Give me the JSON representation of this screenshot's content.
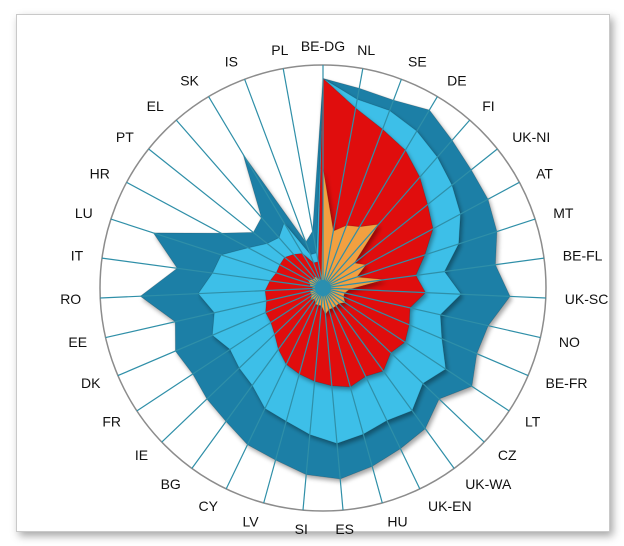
{
  "chart_data": {
    "type": "radar",
    "title": "",
    "categories": [
      "BE-DG",
      "NL",
      "SE",
      "DE",
      "FI",
      "UK-NI",
      "AT",
      "MT",
      "BE-FL",
      "UK-SC",
      "NO",
      "BE-FR",
      "LT",
      "CZ",
      "UK-WA",
      "UK-EN",
      "HU",
      "ES",
      "SI",
      "LV",
      "CY",
      "BG",
      "IE",
      "FR",
      "DK",
      "EE",
      "RO",
      "IT",
      "LU",
      "HR",
      "PT",
      "EL",
      "SK",
      "IS",
      "PL"
    ],
    "rmax": 100,
    "grid": true,
    "legend": "none",
    "series": [
      {
        "color": "#1f7fa6",
        "values": [
          94,
          91,
          90,
          93,
          88,
          85,
          84,
          82,
          78,
          84,
          76,
          75,
          80,
          72,
          78,
          80,
          83,
          86,
          84,
          80,
          78,
          74,
          72,
          70,
          72,
          68,
          82,
          66,
          80,
          52,
          40,
          42,
          70,
          22,
          26
        ]
      },
      {
        "color": "#3cbfe8",
        "values": [
          94,
          86,
          85,
          82,
          78,
          74,
          70,
          64,
          55,
          62,
          54,
          58,
          66,
          62,
          68,
          66,
          68,
          70,
          66,
          62,
          60,
          54,
          52,
          50,
          54,
          50,
          56,
          50,
          48,
          38,
          32,
          30,
          34,
          16,
          16
        ]
      },
      {
        "color": "#e00c0c",
        "values": [
          94,
          82,
          76,
          72,
          66,
          60,
          56,
          48,
          42,
          46,
          40,
          42,
          44,
          42,
          46,
          44,
          46,
          44,
          42,
          40,
          38,
          34,
          30,
          28,
          28,
          26,
          26,
          24,
          22,
          22,
          22,
          20,
          18,
          12,
          12
        ]
      },
      {
        "color": "#f2a040",
        "values": [
          54,
          26,
          30,
          32,
          38,
          18,
          22,
          16,
          28,
          12,
          10,
          10,
          12,
          10,
          10,
          10,
          10,
          12,
          8,
          8,
          8,
          6,
          8,
          6,
          6,
          6,
          4,
          6,
          6,
          8,
          6,
          6,
          6,
          4,
          4
        ]
      }
    ]
  }
}
